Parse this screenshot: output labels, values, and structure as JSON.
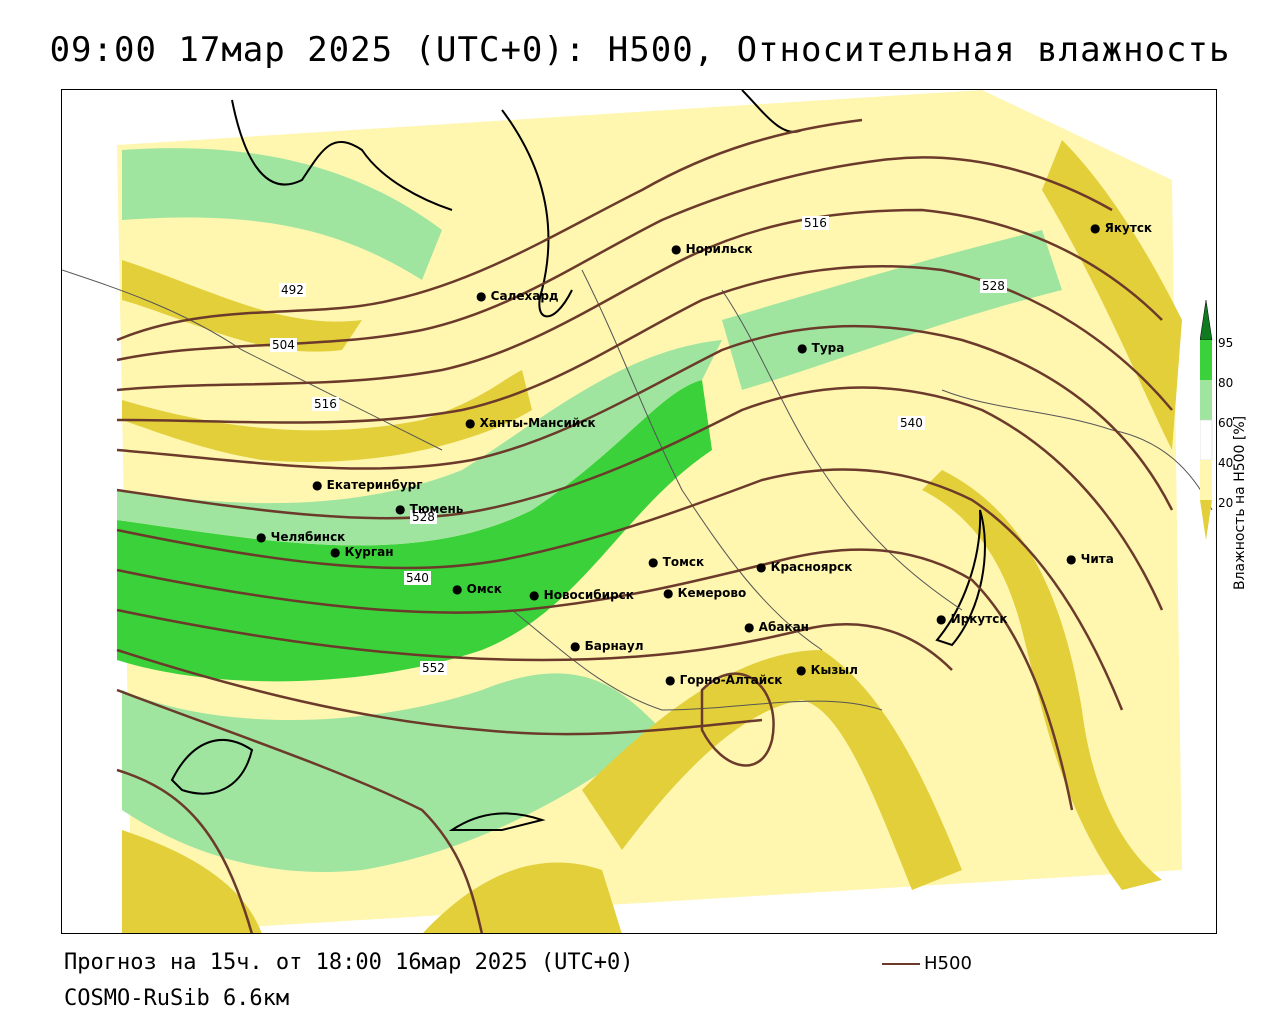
{
  "title": "09:00 17мар 2025 (UTC+0): H500, Относительная влажность",
  "footer": {
    "forecast": "Прогноз на 15ч. от 18:00 16мар 2025 (UTC+0)",
    "model": "COSMO-RuSib 6.6км"
  },
  "legend": {
    "series_label": "H500",
    "series_color": "#6b3a2a"
  },
  "colorbar": {
    "title": "Влажность на H500 [%]",
    "ticks": [
      "95",
      "80",
      "60",
      "40",
      "20"
    ],
    "colors": [
      "#0f7a1f",
      "#3ad13a",
      "#9fe59f",
      "#ffffff",
      "#fff6b0",
      "#e2cf3a"
    ]
  },
  "contour_labels": [
    "492",
    "504",
    "516",
    "516",
    "528",
    "528",
    "540",
    "540",
    "552"
  ],
  "cities": [
    "Норильск",
    "Якутск",
    "Салехард",
    "Тура",
    "Ханты-Мансийск",
    "Екатеринбург",
    "Тюмень",
    "Челябинск",
    "Курган",
    "Омск",
    "Новосибирск",
    "Томск",
    "Кемерово",
    "Красноярск",
    "Барнаул",
    "Абакан",
    "Горно-Алтайск",
    "Кызыл",
    "Иркутск",
    "Чита"
  ]
}
